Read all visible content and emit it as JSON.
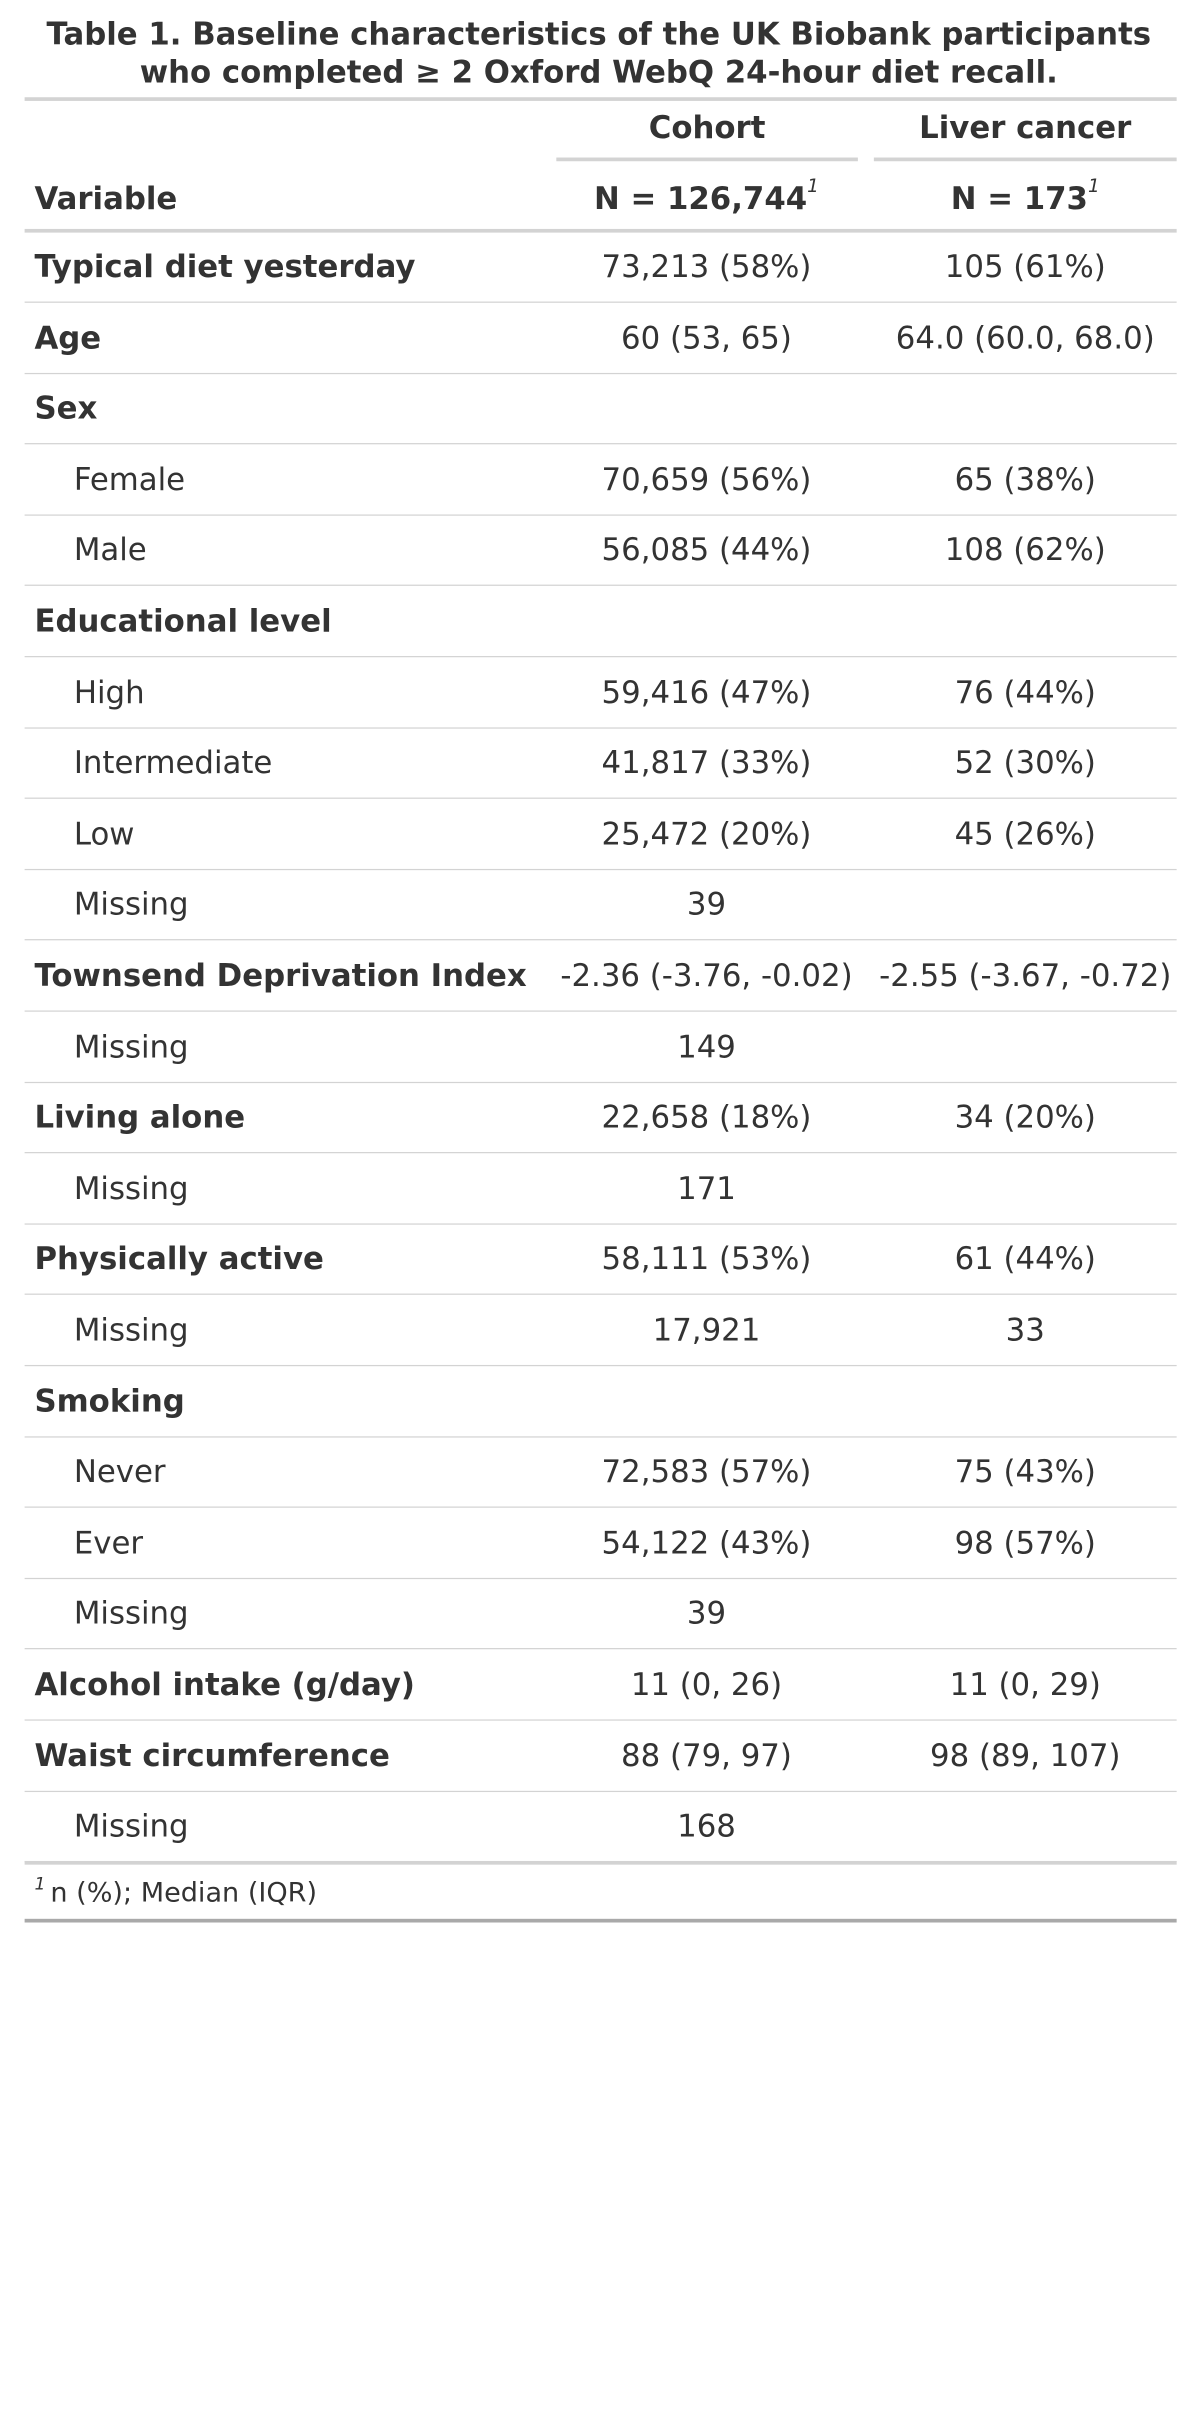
{
  "title": {
    "line1": "Table 1. Baseline characteristics of the UK Biobank participants",
    "line2": "who completed ≥ 2 Oxford WebQ 24-hour diet recall."
  },
  "header": {
    "variable_label": "Variable",
    "cohort_spanner": "Cohort",
    "cohort_n": "N = 126,744",
    "liver_spanner": "Liver cancer",
    "liver_n": "N = 173",
    "footnote_marker": "1"
  },
  "rows": [
    {
      "label": "Typical diet yesterday",
      "cohort": "73,213 (58%)",
      "liver": "105 (61%)"
    },
    {
      "label": "Age",
      "cohort": "60 (53, 65)",
      "liver": "64.0 (60.0, 68.0)"
    },
    {
      "label": "Sex",
      "cohort": "",
      "liver": ""
    },
    {
      "label": "Female",
      "cohort": "70,659 (56%)",
      "liver": "65 (38%)"
    },
    {
      "label": "Male",
      "cohort": "56,085 (44%)",
      "liver": "108 (62%)"
    },
    {
      "label": "Educational level",
      "cohort": "",
      "liver": ""
    },
    {
      "label": "High",
      "cohort": "59,416 (47%)",
      "liver": "76 (44%)"
    },
    {
      "label": "Intermediate",
      "cohort": "41,817 (33%)",
      "liver": "52 (30%)"
    },
    {
      "label": "Low",
      "cohort": "25,472 (20%)",
      "liver": "45 (26%)"
    },
    {
      "label": "Missing",
      "cohort": "39",
      "liver": ""
    },
    {
      "label": "Townsend Deprivation Index",
      "cohort": "-2.36 (-3.76, -0.02)",
      "liver": "-2.55 (-3.67, -0.72)"
    },
    {
      "label": "Missing",
      "cohort": "149",
      "liver": ""
    },
    {
      "label": "Living alone",
      "cohort": "22,658 (18%)",
      "liver": "34 (20%)"
    },
    {
      "label": "Missing",
      "cohort": "171",
      "liver": ""
    },
    {
      "label": "Physically active",
      "cohort": "58,111 (53%)",
      "liver": "61 (44%)"
    },
    {
      "label": "Missing",
      "cohort": "17,921",
      "liver": "33"
    },
    {
      "label": "Smoking",
      "cohort": "",
      "liver": ""
    },
    {
      "label": "Never",
      "cohort": "72,583 (57%)",
      "liver": "75 (43%)"
    },
    {
      "label": "Ever",
      "cohort": "54,122 (43%)",
      "liver": "98 (57%)"
    },
    {
      "label": "Missing",
      "cohort": "39",
      "liver": ""
    },
    {
      "label": "Alcohol intake (g/day)",
      "cohort": "11 (0, 26)",
      "liver": "11 (0, 29)"
    },
    {
      "label": "Waist circumference",
      "cohort": "88 (79, 97)",
      "liver": "98 (89, 107)"
    },
    {
      "label": "Missing",
      "cohort": "168",
      "liver": ""
    }
  ],
  "footnote": {
    "marker": "1",
    "text": "n (%); Median (IQR)"
  }
}
